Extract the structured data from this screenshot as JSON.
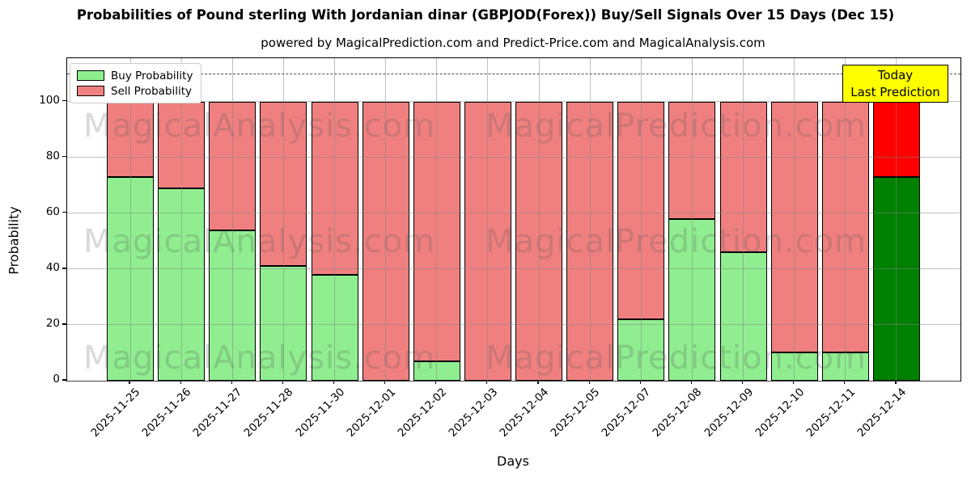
{
  "title": "Probabilities of Pound sterling With Jordanian dinar (GBPJOD(Forex)) Buy/Sell Signals Over 15 Days (Dec 15)",
  "subtitle": "powered by MagicalPrediction.com and Predict-Price.com and MagicalAnalysis.com",
  "watermarks": {
    "left": "MagicalAnalysis.com",
    "right": "MagicalPrediction.com"
  },
  "legend": [
    {
      "label": "Buy Probability",
      "color": "#90EE90"
    },
    {
      "label": "Sell Probability",
      "color": "#F08080"
    }
  ],
  "annotation": {
    "line1": "Today",
    "line2": "Last Prediction",
    "bg": "#FFFF00"
  },
  "axes": {
    "ylabel": "Probability",
    "xlabel": "Days",
    "yticks": [
      0,
      20,
      40,
      60,
      80,
      100
    ],
    "ymax": 115.6,
    "dashed_line_y": 110,
    "grid": true
  },
  "chart_data": {
    "type": "bar",
    "stacked": true,
    "title": "Probabilities of Pound sterling With Jordanian dinar (GBPJOD(Forex)) Buy/Sell Signals Over 15 Days (Dec 15)",
    "xlabel": "Days",
    "ylabel": "Probability",
    "ylim": [
      0,
      115.6
    ],
    "categories": [
      "2025-11-25",
      "2025-11-26",
      "2025-11-27",
      "2025-11-28",
      "2025-11-30",
      "2025-12-01",
      "2025-12-02",
      "2025-12-03",
      "2025-12-04",
      "2025-12-05",
      "2025-12-07",
      "2025-12-08",
      "2025-12-09",
      "2025-12-10",
      "2025-12-11",
      "2025-12-14"
    ],
    "series": [
      {
        "name": "Buy Probability",
        "values": [
          73,
          69,
          54,
          41,
          38,
          0,
          7,
          0,
          0,
          0,
          22,
          58,
          46,
          10,
          10,
          73
        ]
      },
      {
        "name": "Sell Probability",
        "values": [
          27,
          31,
          46,
          59,
          62,
          100,
          93,
          100,
          100,
          100,
          78,
          42,
          54,
          90,
          90,
          27
        ]
      }
    ],
    "colors": {
      "buy": "#90EE90",
      "sell": "#F08080",
      "last_bar_buy": "#008000",
      "last_bar_sell": "#FF0000",
      "bar_edge": "#000000"
    },
    "legend_position": "upper left",
    "annotation_last_bar": "Today Last Prediction"
  }
}
